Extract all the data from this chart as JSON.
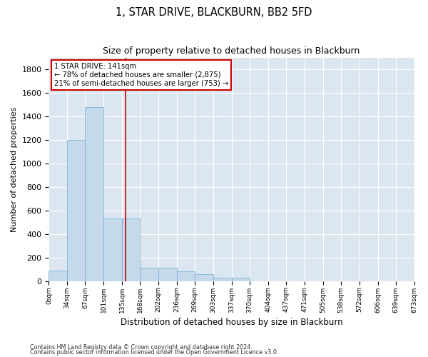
{
  "title": "1, STAR DRIVE, BLACKBURN, BB2 5FD",
  "subtitle": "Size of property relative to detached houses in Blackburn",
  "xlabel": "Distribution of detached houses by size in Blackburn",
  "ylabel": "Number of detached properties",
  "footnote1": "Contains HM Land Registry data © Crown copyright and database right 2024.",
  "footnote2": "Contains public sector information licensed under the Open Government Licence v3.0.",
  "property_size": 141,
  "property_label": "1 STAR DRIVE: 141sqm",
  "annotation_line1": "← 78% of detached houses are smaller (2,875)",
  "annotation_line2": "21% of semi-detached houses are larger (753) →",
  "bar_color": "#c6d9ea",
  "bar_edge_color": "#6aadd5",
  "vline_color": "#cc0000",
  "annotation_box_color": "#cc0000",
  "background_color": "#dce6f0",
  "bins": [
    0,
    34,
    67,
    101,
    135,
    168,
    202,
    236,
    269,
    303,
    337,
    370,
    404,
    437,
    471,
    505,
    538,
    572,
    606,
    639,
    673
  ],
  "bar_heights": [
    90,
    1200,
    1480,
    530,
    530,
    115,
    115,
    85,
    55,
    30,
    30,
    0,
    0,
    0,
    0,
    0,
    0,
    0,
    0,
    0
  ],
  "ylim": [
    0,
    1900
  ],
  "yticks": [
    0,
    200,
    400,
    600,
    800,
    1000,
    1200,
    1400,
    1600,
    1800
  ]
}
